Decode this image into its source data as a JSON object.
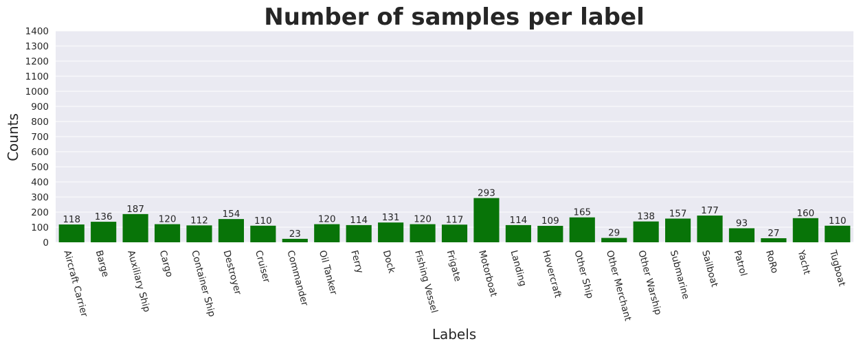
{
  "chart_data": {
    "type": "bar",
    "title": "Number of samples per label",
    "xlabel": "Labels",
    "ylabel": "Counts",
    "categories": [
      "Aircraft Carrier",
      "Barge",
      "Auxiliary Ship",
      "Cargo",
      "Container Ship",
      "Destroyer",
      "Cruiser",
      "Commander",
      "Oil Tanker",
      "Ferry",
      "Dock",
      "Fishing Vessel",
      "Frigate",
      "Motorboat",
      "Landing",
      "Hovercraft",
      "Other Ship",
      "Other Merchant",
      "Other Warship",
      "Submarine",
      "Sailboat",
      "Patrol",
      "RoRo",
      "Yacht",
      "Tugboat"
    ],
    "values": [
      118,
      136,
      187,
      120,
      112,
      154,
      110,
      23,
      120,
      114,
      131,
      120,
      117,
      293,
      114,
      109,
      165,
      29,
      138,
      157,
      177,
      93,
      27,
      160,
      110
    ],
    "ylim": [
      0,
      1400
    ],
    "yticks": [
      0,
      100,
      200,
      300,
      400,
      500,
      600,
      700,
      800,
      900,
      1000,
      1100,
      1200,
      1300,
      1400
    ],
    "grid": true,
    "x_tick_rotation_deg": 75,
    "colors": {
      "bar": "#087408",
      "plot_background": "#eaeaf2",
      "grid": "#ffffff",
      "text": "#262626"
    }
  }
}
